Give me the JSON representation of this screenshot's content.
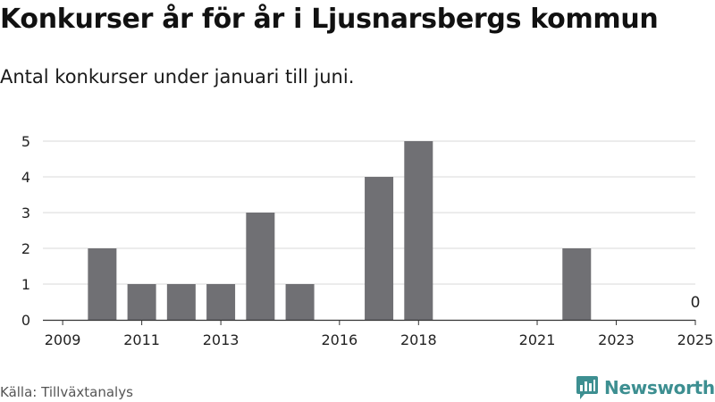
{
  "title": "Konkurser år för år i Ljusnarsbergs kommun",
  "subtitle": "Antal konkurser under januari till juni.",
  "source": "Källa: Tillväxtanalys",
  "brand": "Newsworthy",
  "colors": {
    "bar": "#707074",
    "grid": "#d9d9d9",
    "axis": "#333333",
    "brand": "#3d8f91"
  },
  "icons": {
    "brand_logo": "newsworthy-logo-icon"
  },
  "chart_data": {
    "type": "bar",
    "categories": [
      "2009",
      "2010",
      "2011",
      "2012",
      "2013",
      "2014",
      "2015",
      "2016",
      "2017",
      "2018",
      "2019",
      "2020",
      "2021",
      "2022",
      "2023",
      "2024",
      "2025"
    ],
    "values": [
      null,
      2,
      1,
      1,
      1,
      3,
      1,
      null,
      4,
      5,
      null,
      null,
      null,
      2,
      null,
      null,
      0
    ],
    "x_tick_labels": [
      "2009",
      "2011",
      "2013",
      "2016",
      "2018",
      "2021",
      "2023",
      "2025"
    ],
    "y_ticks": [
      0,
      1,
      2,
      3,
      4,
      5
    ],
    "ylim": [
      0,
      5
    ],
    "data_labels": [
      {
        "category": "2025",
        "text": "0"
      }
    ],
    "title": "Konkurser år för år i Ljusnarsbergs kommun",
    "xlabel": "",
    "ylabel": "",
    "grid": true,
    "legend": "none"
  }
}
